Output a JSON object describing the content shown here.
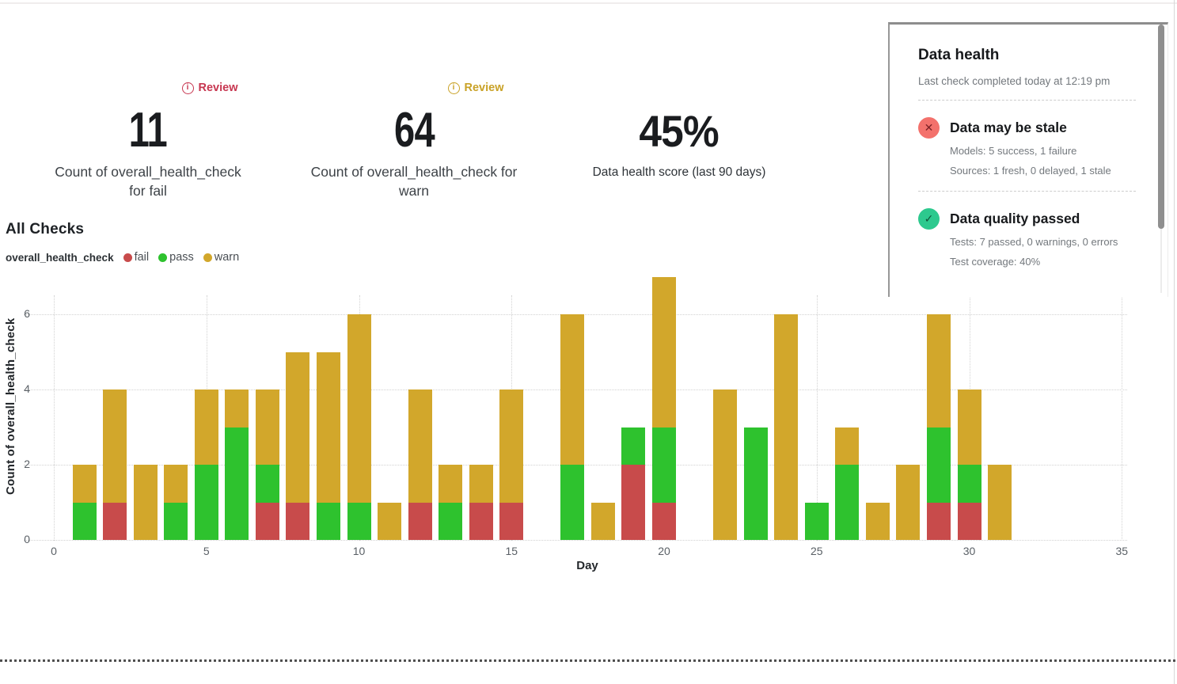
{
  "kpis": {
    "fail": {
      "badge": "Review",
      "value": "11",
      "label_lines": [
        "Count of overall_health_check",
        "for fail"
      ]
    },
    "warn": {
      "badge": "Review",
      "value": "64",
      "label_lines": [
        "Count of overall_health_check for",
        "warn"
      ]
    },
    "score": {
      "value": "45%",
      "label_lines": [
        "Data health score (last 90 days)"
      ]
    }
  },
  "chart_data": {
    "type": "stacked-bar",
    "title": "All Checks",
    "legend_series": "overall_health_check",
    "xlabel": "Day",
    "ylabel": "Count of overall_health_check",
    "x_ticks": [
      0,
      5,
      10,
      15,
      20,
      25,
      30,
      35
    ],
    "y_ticks": [
      0,
      2,
      4,
      6
    ],
    "xlim": [
      0,
      36.8
    ],
    "ylim": [
      0,
      7.2
    ],
    "grid": "dotted",
    "legend_position": "top-left",
    "x": [
      1,
      2,
      3,
      4,
      5,
      6,
      7,
      8,
      9,
      10,
      11,
      12,
      13,
      14,
      15,
      16,
      17,
      18,
      19,
      20,
      21,
      22,
      23,
      24,
      25,
      26,
      27,
      28,
      29,
      30,
      31
    ],
    "series": [
      {
        "name": "fail",
        "color": "#c84b4b",
        "values": [
          0,
          1,
          0,
          0,
          0,
          0,
          1,
          1,
          0,
          0,
          0,
          1,
          0,
          1,
          1,
          0,
          0,
          0,
          2,
          1,
          0,
          0,
          0,
          0,
          0,
          0,
          0,
          0,
          1,
          1,
          0
        ]
      },
      {
        "name": "pass",
        "color": "#2ec22e",
        "values": [
          1,
          0,
          0,
          1,
          2,
          3,
          1,
          0,
          1,
          1,
          0,
          0,
          1,
          0,
          0,
          0,
          2,
          0,
          1,
          2,
          0,
          0,
          3,
          0,
          1,
          2,
          0,
          0,
          2,
          1,
          0
        ]
      },
      {
        "name": "warn",
        "color": "#d2a72b",
        "values": [
          1,
          3,
          2,
          1,
          2,
          1,
          2,
          4,
          4,
          5,
          1,
          3,
          1,
          1,
          3,
          0,
          4,
          1,
          0,
          4,
          0,
          4,
          0,
          6,
          0,
          1,
          1,
          2,
          3,
          2,
          2
        ]
      }
    ]
  },
  "panel": {
    "title": "Data health",
    "subtitle": "Last check completed today at 12:19 pm",
    "items": [
      {
        "status": "error",
        "title": "Data may be stale",
        "lines": [
          "Models: 5 success, 1 failure",
          "Sources: 1 fresh, 0 delayed, 1 stale"
        ]
      },
      {
        "status": "success",
        "title": "Data quality passed",
        "lines": [
          "Tests: 7 passed, 0 warnings, 0 errors",
          "Test coverage: 40%"
        ]
      }
    ]
  },
  "colors": {
    "review_fail": "#c73650",
    "review_warn": "#c9a227",
    "error_circle": "#f3716c",
    "error_glyph": "#7c2125",
    "success_circle": "#2dc98e",
    "success_glyph": "#0e5339",
    "bar_fail": "#c84b4b",
    "bar_pass": "#2ec22e",
    "bar_warn": "#d2a72b"
  }
}
